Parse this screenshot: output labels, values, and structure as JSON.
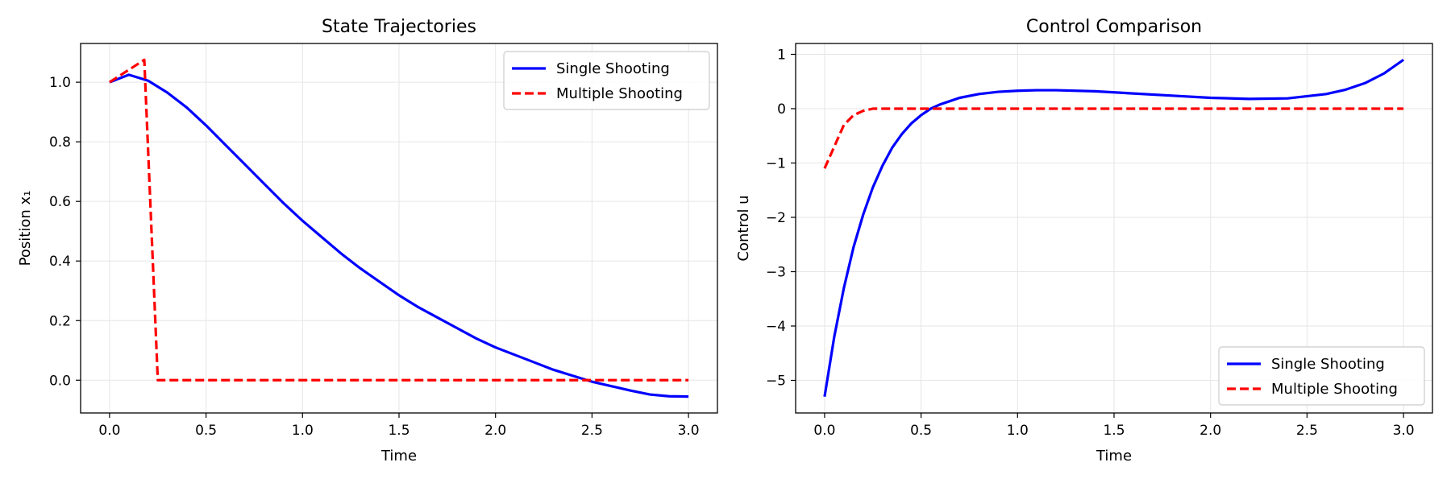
{
  "chart_data": [
    {
      "type": "line",
      "title": "State Trajectories",
      "xlabel": "Time",
      "ylabel": "Position x₁",
      "xlim": [
        -0.15,
        3.15
      ],
      "ylim": [
        -0.11,
        1.13
      ],
      "xticks": [
        0.0,
        0.5,
        1.0,
        1.5,
        2.0,
        2.5,
        3.0
      ],
      "xtick_labels": [
        "0.0",
        "0.5",
        "1.0",
        "1.5",
        "2.0",
        "2.5",
        "3.0"
      ],
      "yticks": [
        0.0,
        0.2,
        0.4,
        0.6,
        0.8,
        1.0
      ],
      "ytick_labels": [
        "0.0",
        "0.2",
        "0.4",
        "0.6",
        "0.8",
        "1.0"
      ],
      "grid": true,
      "legend_position": "top-right",
      "series": [
        {
          "name": "Single Shooting",
          "color": "#0000ff",
          "style": "solid",
          "x": [
            0.0,
            0.1,
            0.2,
            0.3,
            0.4,
            0.5,
            0.6,
            0.7,
            0.8,
            0.9,
            1.0,
            1.1,
            1.2,
            1.3,
            1.4,
            1.5,
            1.6,
            1.7,
            1.8,
            1.9,
            2.0,
            2.1,
            2.2,
            2.3,
            2.4,
            2.5,
            2.6,
            2.7,
            2.8,
            2.9,
            3.0
          ],
          "y": [
            1.0,
            1.025,
            1.005,
            0.965,
            0.915,
            0.855,
            0.79,
            0.725,
            0.66,
            0.595,
            0.535,
            0.48,
            0.425,
            0.375,
            0.33,
            0.285,
            0.245,
            0.21,
            0.175,
            0.14,
            0.11,
            0.085,
            0.06,
            0.035,
            0.015,
            -0.005,
            -0.02,
            -0.035,
            -0.048,
            -0.054,
            -0.055
          ]
        },
        {
          "name": "Multiple Shooting",
          "color": "#ff0000",
          "style": "dashed",
          "x": [
            0.0,
            0.18,
            0.25,
            3.0
          ],
          "y": [
            1.0,
            1.075,
            0.0,
            0.0
          ]
        }
      ]
    },
    {
      "type": "line",
      "title": "Control Comparison",
      "xlabel": "Time",
      "ylabel": "Control u",
      "xlim": [
        -0.15,
        3.15
      ],
      "ylim": [
        -5.6,
        1.2
      ],
      "xticks": [
        0.0,
        0.5,
        1.0,
        1.5,
        2.0,
        2.5,
        3.0
      ],
      "xtick_labels": [
        "0.0",
        "0.5",
        "1.0",
        "1.5",
        "2.0",
        "2.5",
        "3.0"
      ],
      "yticks": [
        -5,
        -4,
        -3,
        -2,
        -1,
        0,
        1
      ],
      "ytick_labels": [
        "−5",
        "−4",
        "−3",
        "−2",
        "−1",
        "0",
        "1"
      ],
      "grid": true,
      "legend_position": "lower-right",
      "series": [
        {
          "name": "Single Shooting",
          "color": "#0000ff",
          "style": "solid",
          "x": [
            0.0,
            0.05,
            0.1,
            0.15,
            0.2,
            0.25,
            0.3,
            0.35,
            0.4,
            0.45,
            0.5,
            0.55,
            0.6,
            0.65,
            0.7,
            0.8,
            0.9,
            1.0,
            1.1,
            1.2,
            1.4,
            1.6,
            1.8,
            2.0,
            2.2,
            2.4,
            2.6,
            2.7,
            2.8,
            2.9,
            3.0
          ],
          "y": [
            -5.3,
            -4.2,
            -3.3,
            -2.55,
            -1.95,
            -1.45,
            -1.05,
            -0.72,
            -0.47,
            -0.27,
            -0.12,
            0.0,
            0.08,
            0.14,
            0.2,
            0.27,
            0.31,
            0.33,
            0.34,
            0.34,
            0.32,
            0.28,
            0.24,
            0.2,
            0.18,
            0.19,
            0.27,
            0.35,
            0.47,
            0.65,
            0.9
          ]
        },
        {
          "name": "Multiple Shooting",
          "color": "#ff0000",
          "style": "dashed",
          "x": [
            0.0,
            0.05,
            0.1,
            0.15,
            0.2,
            0.25,
            0.3,
            3.0
          ],
          "y": [
            -1.1,
            -0.7,
            -0.3,
            -0.12,
            -0.04,
            0.0,
            0.0,
            0.0
          ]
        }
      ]
    }
  ]
}
